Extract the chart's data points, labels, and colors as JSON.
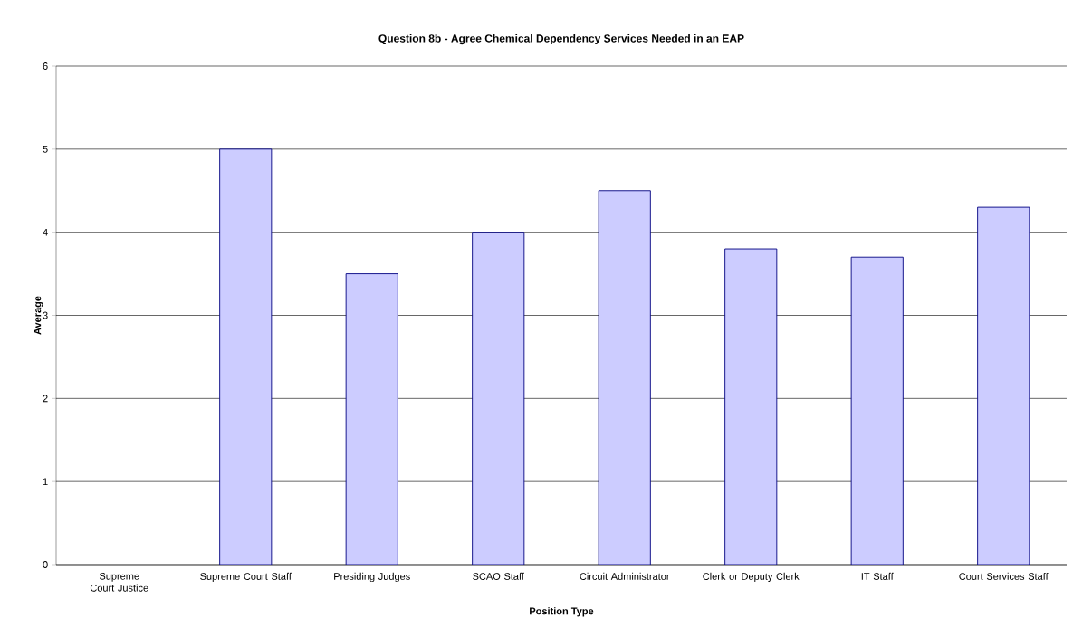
{
  "chart_data": {
    "type": "bar",
    "title": "Question 8b - Agree Chemical Dependency Services Needed in an EAP",
    "xlabel": "Position Type",
    "ylabel": "Average",
    "categories": [
      "Supreme Court Justice",
      "Supreme Court Staff",
      "Presiding Judges",
      "SCAO Staff",
      "Circuit Administrator",
      "Clerk or Deputy Clerk",
      "IT Staff",
      "Court Services Staff"
    ],
    "values": [
      null,
      5.0,
      3.5,
      4.0,
      4.5,
      3.8,
      3.7,
      4.3
    ],
    "color": "#ccccff",
    "ylim": [
      0,
      6
    ],
    "yticks": [
      0,
      1,
      2,
      3,
      4,
      5,
      6
    ],
    "grid": "y"
  }
}
